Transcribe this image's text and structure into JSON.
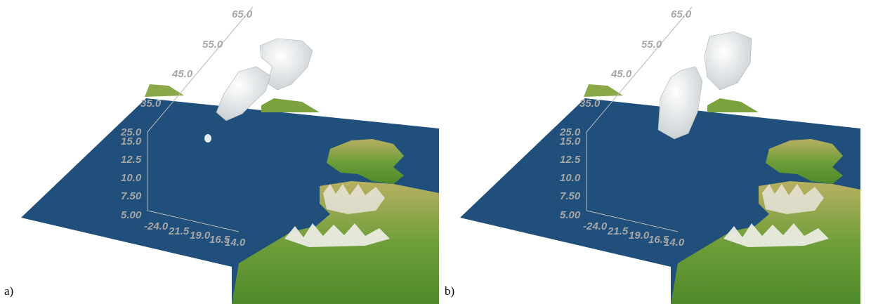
{
  "panels": [
    {
      "caption": "a)",
      "lat_ticks": [
        "65.0",
        "55.0",
        "45.0",
        "35.0",
        "25.0"
      ],
      "alt_ticks": [
        "15.0",
        "12.5",
        "10.0",
        "7.50",
        "5.00"
      ],
      "lon_ticks": [
        "-24.0",
        "21.5",
        "19.0",
        "16.5",
        "14.0"
      ]
    },
    {
      "caption": "b)",
      "lat_ticks": [
        "65.0",
        "55.0",
        "45.0",
        "35.0",
        "25.0"
      ],
      "alt_ticks": [
        "15.0",
        "12.5",
        "10.0",
        "7.50",
        "5.00"
      ],
      "lon_ticks": [
        "-24.0",
        "21.5",
        "19.0",
        "16.5",
        "14.0"
      ]
    }
  ],
  "colors": {
    "ocean": "#1f4f7a",
    "land_green": "#5f9a32",
    "land_yellow": "#b8b061",
    "mountain": "#ffffff",
    "cloud": "#e8ecee",
    "axis": "#b8b8b8",
    "tick_text": "#a7a7a7"
  }
}
